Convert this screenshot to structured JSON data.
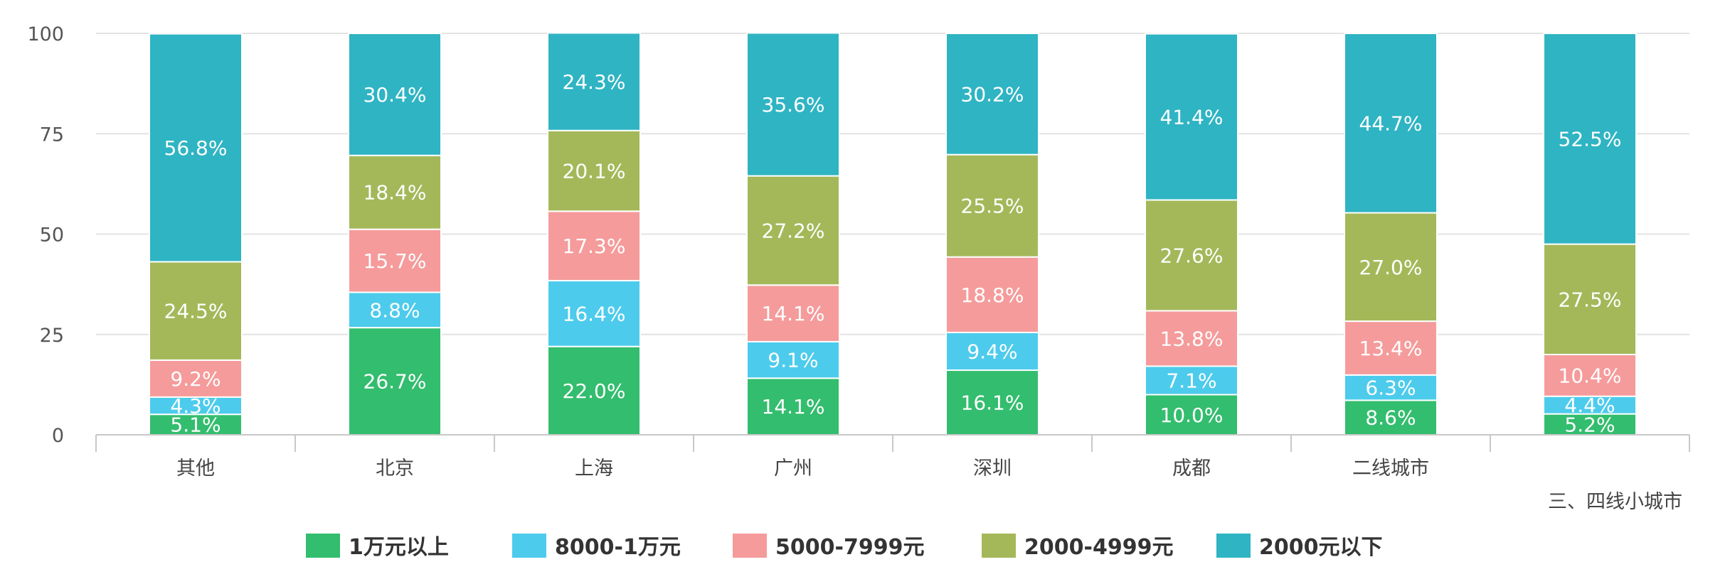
{
  "chart_data": {
    "type": "bar",
    "stacked": true,
    "categories": [
      "其他",
      "北京",
      "上海",
      "广州",
      "深圳",
      "成都",
      "二线城市",
      "三、四线小城市"
    ],
    "ylim": [
      0,
      100
    ],
    "yticks": [
      0,
      25,
      50,
      75,
      100
    ],
    "grid": true,
    "legend_position": "bottom",
    "series": [
      {
        "name": "1万元以上",
        "color": "#33bd6e",
        "values": [
          5.1,
          26.7,
          22.0,
          14.1,
          16.1,
          10.0,
          8.6,
          5.2
        ],
        "labels": [
          "5.1%",
          "26.7%",
          "22.0%",
          "14.1%",
          "16.1%",
          "10.0%",
          "8.6%",
          "5.2%"
        ]
      },
      {
        "name": "8000-1万元",
        "color": "#4dcbec",
        "values": [
          4.3,
          8.8,
          16.4,
          9.1,
          9.4,
          7.1,
          6.3,
          4.4
        ],
        "labels": [
          "4.3%",
          "8.8%",
          "16.4%",
          "9.1%",
          "9.4%",
          "7.1%",
          "6.3%",
          "4.4%"
        ]
      },
      {
        "name": "5000-7999元",
        "color": "#f59b9b",
        "values": [
          9.2,
          15.7,
          17.3,
          14.1,
          18.8,
          13.8,
          13.4,
          10.4
        ],
        "labels": [
          "9.2%",
          "15.7%",
          "17.3%",
          "14.1%",
          "18.8%",
          "13.8%",
          "13.4%",
          "10.4%"
        ]
      },
      {
        "name": "2000-4999元",
        "color": "#a4b85a",
        "values": [
          24.5,
          18.4,
          20.1,
          27.2,
          25.5,
          27.6,
          27.0,
          27.5
        ],
        "labels": [
          "24.5%",
          "18.4%",
          "20.1%",
          "27.2%",
          "25.5%",
          "27.6%",
          "27.0%",
          "27.5%"
        ]
      },
      {
        "name": "2000元以下",
        "color": "#2fb4c3",
        "values": [
          56.8,
          30.4,
          24.3,
          35.6,
          30.2,
          41.4,
          44.7,
          52.5
        ],
        "labels": [
          "56.8%",
          "30.4%",
          "24.3%",
          "35.6%",
          "30.2%",
          "41.4%",
          "44.7%",
          "52.5%"
        ]
      }
    ]
  }
}
